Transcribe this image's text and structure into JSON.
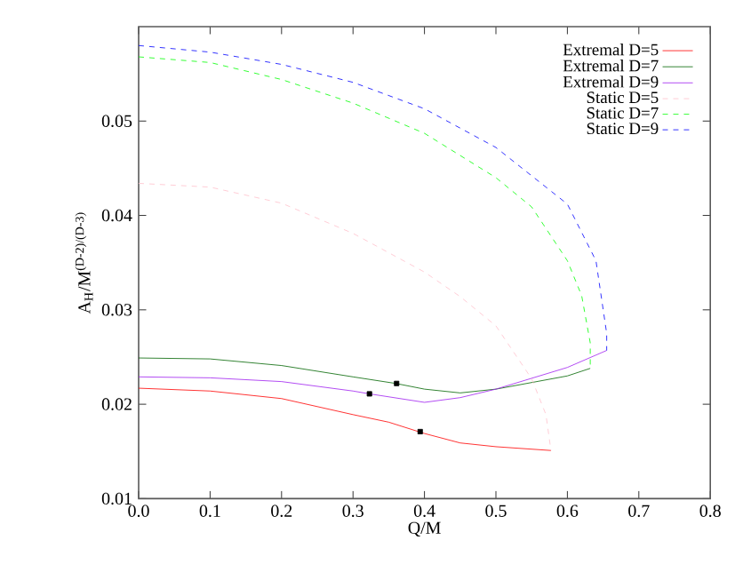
{
  "chart_data": {
    "type": "line",
    "xlabel": "Q/M",
    "ylabel": "A$_{H}$/M$^{(D-2)/(D-3)}$",
    "xlim": [
      0,
      0.8
    ],
    "ylim": [
      0.01,
      0.06
    ],
    "xticks": [
      {
        "value": 0,
        "label": "0.0"
      },
      0.1,
      0.2,
      0.3,
      0.4,
      0.5,
      0.6,
      0.7,
      0.8
    ],
    "yticks": [
      0.01,
      0.02,
      0.03,
      0.04,
      0.05
    ],
    "legend": "top right",
    "grid": false,
    "marker": "none",
    "series": [
      {
        "name": "Extremal D=5",
        "color": "#ff0000",
        "line_style": "solid",
        "x": [
          0,
          0.1,
          0.2,
          0.3,
          0.35,
          0.4,
          0.45,
          0.5,
          0.577
        ],
        "values": [
          0.0217,
          0.0214,
          0.0206,
          0.0189,
          0.0181,
          0.0169,
          0.0159,
          0.0155,
          0.0151
        ]
      },
      {
        "name": "Extremal D=7",
        "color": "#006400",
        "line_style": "solid",
        "x": [
          0,
          0.1,
          0.2,
          0.3,
          0.36,
          0.4,
          0.45,
          0.5,
          0.6,
          0.632
        ],
        "values": [
          0.0249,
          0.0248,
          0.0241,
          0.0229,
          0.0222,
          0.0216,
          0.0212,
          0.0216,
          0.023,
          0.0238
        ]
      },
      {
        "name": "Extremal D=9",
        "color": "#a020f0",
        "line_style": "solid",
        "x": [
          0,
          0.1,
          0.2,
          0.3,
          0.323,
          0.4,
          0.45,
          0.5,
          0.6,
          0.655
        ],
        "values": [
          0.0229,
          0.0228,
          0.0224,
          0.0214,
          0.0211,
          0.0202,
          0.0207,
          0.0216,
          0.0239,
          0.0257
        ]
      },
      {
        "name": "Static D=5",
        "color": "#ffc0cb",
        "line_style": "dashed",
        "x": [
          0,
          0.1,
          0.2,
          0.3,
          0.4,
          0.45,
          0.5,
          0.55,
          0.57,
          0.577
        ],
        "values": [
          0.0434,
          0.043,
          0.0413,
          0.0381,
          0.034,
          0.0314,
          0.0283,
          0.0227,
          0.0189,
          0.0151
        ]
      },
      {
        "name": "Static D=7",
        "color": "#00ff00",
        "line_style": "dashed",
        "x": [
          0,
          0.1,
          0.2,
          0.3,
          0.4,
          0.5,
          0.55,
          0.6,
          0.62,
          0.632,
          0.632
        ],
        "values": [
          0.0568,
          0.0562,
          0.0544,
          0.0519,
          0.0487,
          0.044,
          0.0409,
          0.0352,
          0.0315,
          0.0265,
          0.0238
        ]
      },
      {
        "name": "Static D=9",
        "color": "#0000ff",
        "line_style": "dashed",
        "x": [
          0,
          0.1,
          0.2,
          0.3,
          0.4,
          0.5,
          0.6,
          0.64,
          0.655,
          0.655
        ],
        "values": [
          0.058,
          0.0573,
          0.056,
          0.0541,
          0.0513,
          0.0472,
          0.0412,
          0.0352,
          0.0275,
          0.0257
        ]
      },
      {
        "type": "scatter",
        "marker": "square",
        "color": "#000000",
        "x": [
          0.394,
          0.361,
          0.323
        ],
        "values": [
          0.0171,
          0.0222,
          0.0211
        ]
      }
    ]
  }
}
